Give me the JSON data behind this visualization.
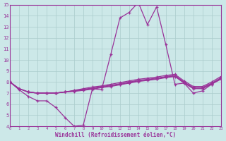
{
  "xlabel": "Windchill (Refroidissement éolien,°C)",
  "bg_color": "#cce8e8",
  "line_color": "#993399",
  "grid_color": "#aacccc",
  "xlim": [
    0,
    23
  ],
  "ylim": [
    4,
    15
  ],
  "yticks": [
    4,
    5,
    6,
    7,
    8,
    9,
    10,
    11,
    12,
    13,
    14,
    15
  ],
  "xticks": [
    0,
    1,
    2,
    3,
    4,
    5,
    6,
    7,
    8,
    9,
    10,
    11,
    12,
    13,
    14,
    15,
    16,
    17,
    18,
    19,
    20,
    21,
    22,
    23
  ],
  "lines": [
    [
      8.0,
      7.3,
      6.7,
      6.3,
      6.3,
      5.7,
      4.8,
      4.0,
      4.1,
      7.4,
      7.3,
      10.5,
      13.8,
      14.3,
      15.2,
      13.2,
      14.8,
      11.4,
      7.8,
      7.9,
      7.0,
      7.2,
      7.8,
      8.4
    ],
    [
      8.0,
      7.4,
      7.1,
      7.0,
      7.0,
      7.0,
      7.1,
      7.25,
      7.4,
      7.55,
      7.65,
      7.8,
      7.95,
      8.1,
      8.25,
      8.35,
      8.45,
      8.6,
      8.7,
      8.1,
      7.6,
      7.6,
      8.0,
      8.5
    ],
    [
      8.0,
      7.4,
      7.1,
      7.0,
      7.0,
      7.0,
      7.1,
      7.2,
      7.35,
      7.45,
      7.6,
      7.7,
      7.85,
      8.0,
      8.15,
      8.25,
      8.35,
      8.5,
      8.6,
      8.0,
      7.5,
      7.5,
      7.9,
      8.35
    ],
    [
      8.0,
      7.4,
      7.1,
      7.0,
      7.0,
      7.0,
      7.1,
      7.2,
      7.3,
      7.4,
      7.55,
      7.65,
      7.8,
      7.95,
      8.1,
      8.2,
      8.3,
      8.45,
      8.55,
      7.95,
      7.45,
      7.45,
      7.85,
      8.3
    ],
    [
      8.0,
      7.4,
      7.1,
      7.0,
      7.0,
      7.0,
      7.1,
      7.15,
      7.25,
      7.35,
      7.5,
      7.6,
      7.75,
      7.9,
      8.05,
      8.15,
      8.25,
      8.4,
      8.5,
      7.9,
      7.4,
      7.4,
      7.8,
      8.25
    ]
  ]
}
